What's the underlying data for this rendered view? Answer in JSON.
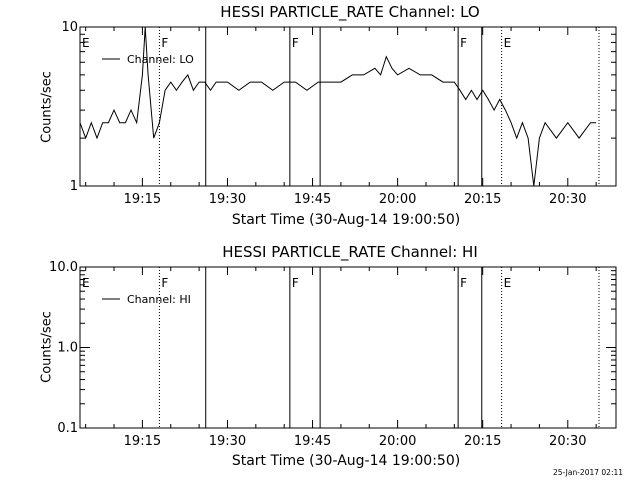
{
  "timestamp": "25-Jan-2017 02:11",
  "chart_data": [
    {
      "type": "line",
      "title": "HESSI PARTICLE_RATE Channel: LO",
      "xlabel": "Start Time (30-Aug-14 19:00:50)",
      "ylabel": "Counts/sec",
      "yscale": "log",
      "ylim": [
        1,
        10
      ],
      "xlim": [
        "19:04:00",
        "20:38:30"
      ],
      "yticks": [
        {
          "value": 1,
          "label": "1"
        },
        {
          "value": 10,
          "label": "10"
        }
      ],
      "xticks": [
        {
          "value": "19:15",
          "label": "19:15"
        },
        {
          "value": "19:30",
          "label": "19:30"
        },
        {
          "value": "19:45",
          "label": "19:45"
        },
        {
          "value": "20:00",
          "label": "20:00"
        },
        {
          "value": "20:15",
          "label": "20:15"
        },
        {
          "value": "20:30",
          "label": "20:30"
        }
      ],
      "legend": {
        "position": "top-left",
        "label": "Channel: LO"
      },
      "grid": false,
      "markers": [
        {
          "time": "19:04:00",
          "label": "E",
          "style": "none"
        },
        {
          "time": "19:18:00",
          "label": "F",
          "style": "dotted"
        },
        {
          "time": "19:26:10",
          "label": "",
          "style": "solid"
        },
        {
          "time": "19:41:00",
          "label": "F",
          "style": "solid"
        },
        {
          "time": "19:46:20",
          "label": "",
          "style": "solid"
        },
        {
          "time": "20:10:40",
          "label": "F",
          "style": "solid"
        },
        {
          "time": "20:14:50",
          "label": "",
          "style": "solid"
        },
        {
          "time": "20:18:20",
          "label": "E",
          "style": "dotted"
        },
        {
          "time": "20:35:30",
          "label": "",
          "style": "dotted"
        }
      ],
      "series": [
        {
          "x": [
            "19:04:00",
            "19:05:00",
            "19:06:00",
            "19:07:00",
            "19:08:00",
            "19:09:00",
            "19:10:00",
            "19:11:00",
            "19:12:00",
            "19:13:00",
            "19:14:00",
            "19:15:00",
            "19:15:30",
            "19:16:00",
            "19:17:00",
            "19:18:00",
            "19:19:00",
            "19:20:00",
            "19:21:00",
            "19:22:00",
            "19:23:00",
            "19:24:00",
            "19:25:00",
            "19:26:00",
            "19:27:00",
            "19:28:00",
            "19:30:00",
            "19:32:00",
            "19:34:00",
            "19:36:00",
            "19:38:00",
            "19:40:00",
            "19:42:00",
            "19:44:00",
            "19:46:00",
            "19:48:00",
            "19:50:00",
            "19:52:00",
            "19:54:00",
            "19:56:00",
            "19:57:00",
            "19:58:00",
            "19:59:00",
            "20:00:00",
            "20:02:00",
            "20:04:00",
            "20:06:00",
            "20:08:00",
            "20:10:00",
            "20:11:00",
            "20:12:00",
            "20:13:00",
            "20:14:00",
            "20:15:00",
            "20:16:00",
            "20:17:00",
            "20:18:00",
            "20:19:00",
            "20:20:00",
            "20:21:00",
            "20:22:00",
            "20:23:00",
            "20:24:00",
            "20:25:00",
            "20:26:00",
            "20:28:00",
            "20:30:00",
            "20:32:00",
            "20:34:00",
            "20:35:00"
          ],
          "y": [
            2.5,
            2.0,
            2.5,
            2.0,
            2.5,
            2.5,
            3.0,
            2.5,
            2.5,
            3.0,
            2.5,
            5.0,
            10.0,
            5.0,
            2.0,
            2.5,
            4.0,
            4.5,
            4.0,
            4.5,
            5.0,
            4.0,
            4.5,
            4.5,
            4.0,
            4.5,
            4.5,
            4.0,
            4.5,
            4.5,
            4.0,
            4.5,
            4.5,
            4.0,
            4.5,
            4.5,
            4.5,
            5.0,
            5.0,
            5.5,
            5.0,
            6.5,
            5.5,
            5.0,
            5.5,
            5.0,
            5.0,
            4.5,
            4.5,
            4.0,
            3.5,
            4.0,
            3.5,
            4.0,
            3.5,
            3.0,
            3.5,
            3.0,
            2.5,
            2.0,
            2.5,
            2.0,
            1.0,
            2.0,
            2.5,
            2.0,
            2.5,
            2.0,
            2.5,
            2.5
          ]
        }
      ]
    },
    {
      "type": "line",
      "title": "HESSI PARTICLE_RATE Channel: HI",
      "xlabel": "Start Time (30-Aug-14 19:00:50)",
      "ylabel": "Counts/sec",
      "yscale": "log",
      "ylim": [
        0.1,
        10.0
      ],
      "xlim": [
        "19:04:00",
        "20:38:30"
      ],
      "yticks": [
        {
          "value": 0.1,
          "label": "0.1"
        },
        {
          "value": 1.0,
          "label": "1.0"
        },
        {
          "value": 10.0,
          "label": "10.0"
        }
      ],
      "xticks": [
        {
          "value": "19:15",
          "label": "19:15"
        },
        {
          "value": "19:30",
          "label": "19:30"
        },
        {
          "value": "19:45",
          "label": "19:45"
        },
        {
          "value": "20:00",
          "label": "20:00"
        },
        {
          "value": "20:15",
          "label": "20:15"
        },
        {
          "value": "20:30",
          "label": "20:30"
        }
      ],
      "legend": {
        "position": "top-left",
        "label": "Channel: HI"
      },
      "grid": false,
      "markers": [
        {
          "time": "19:04:00",
          "label": "E",
          "style": "none"
        },
        {
          "time": "19:18:00",
          "label": "F",
          "style": "dotted"
        },
        {
          "time": "19:26:10",
          "label": "",
          "style": "solid"
        },
        {
          "time": "19:41:00",
          "label": "F",
          "style": "solid"
        },
        {
          "time": "19:46:20",
          "label": "",
          "style": "solid"
        },
        {
          "time": "20:10:40",
          "label": "F",
          "style": "solid"
        },
        {
          "time": "20:14:50",
          "label": "",
          "style": "solid"
        },
        {
          "time": "20:18:20",
          "label": "E",
          "style": "dotted"
        },
        {
          "time": "20:35:30",
          "label": "",
          "style": "dotted"
        }
      ],
      "series": [
        {
          "x": [],
          "y": []
        }
      ]
    }
  ]
}
